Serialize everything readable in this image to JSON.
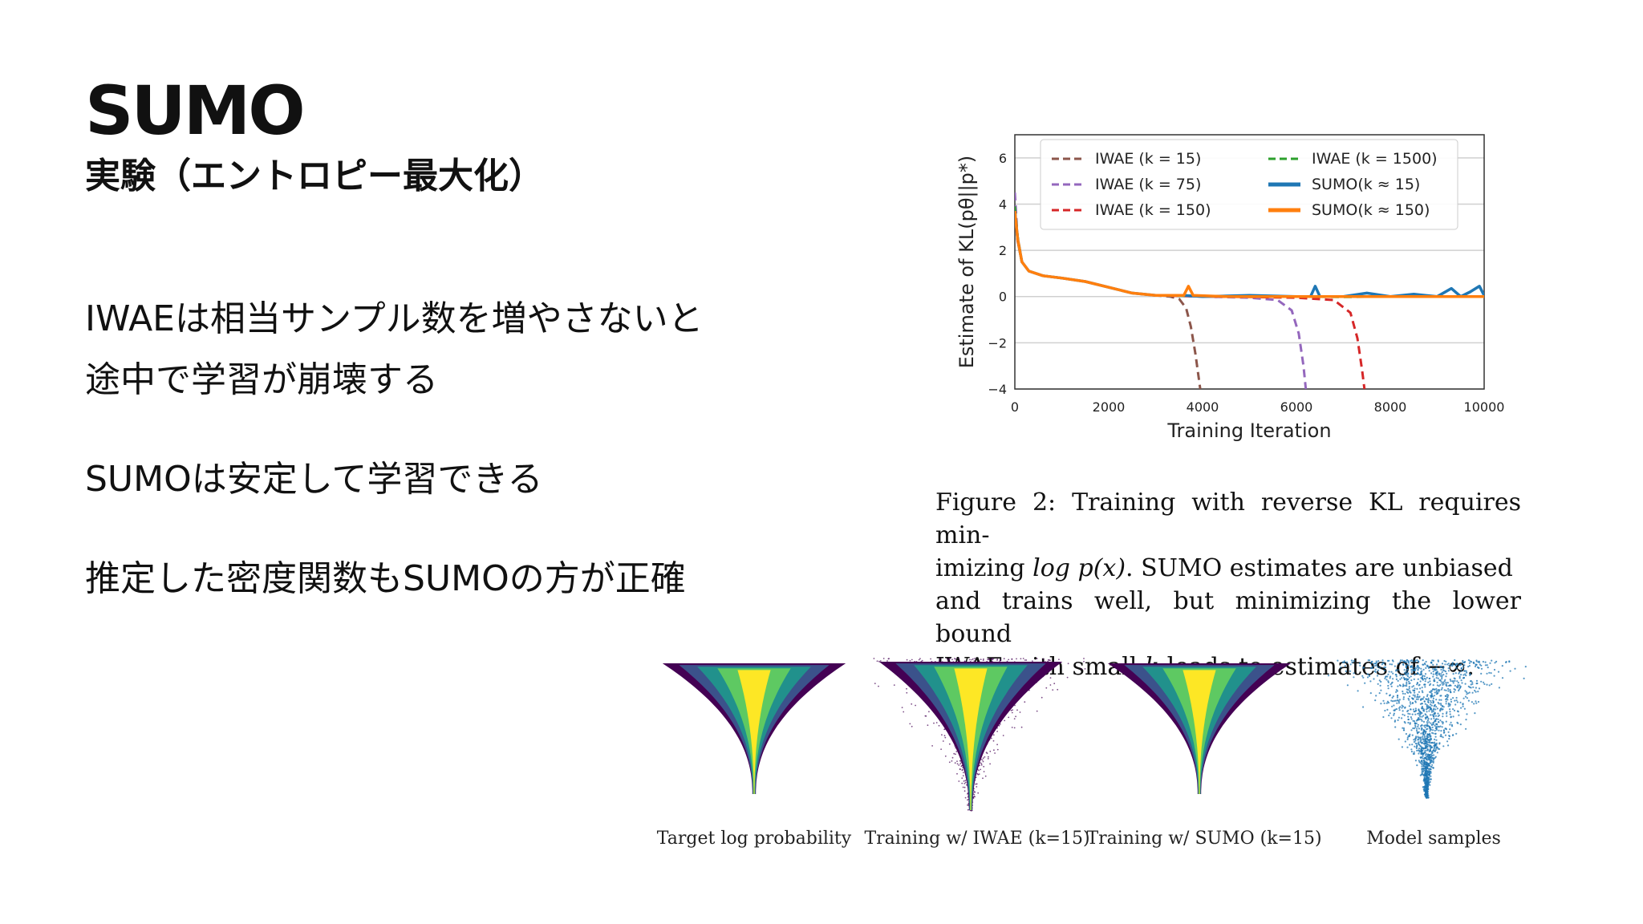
{
  "slide": {
    "title": "SUMO",
    "subtitle": "実験（エントロピー最大化）",
    "bullets": [
      "IWAEは相当サンプル数を増やさないと\n途中で学習が崩壊する",
      "SUMOは安定して学習できる",
      "推定した密度関数もSUMOの方が正確"
    ]
  },
  "caption": {
    "line1": "Figure 2: Training with reverse KL requires min-",
    "line2_pre": "imizing ",
    "line2_math": "log p(x)",
    "line2_post": ". SUMO estimates are unbiased",
    "line3": "and trains well, but minimizing the lower bound",
    "line4_pre": "IWAE with small ",
    "line4_math": "k",
    "line4_post": " leads to estimates of −∞."
  },
  "panels": {
    "labels": [
      "Target log probability",
      "Training w/ IWAE (k=15)",
      "Training w/ SUMO (k=15)",
      "Model samples"
    ],
    "colormap": [
      "#440154",
      "#3b528b",
      "#21918c",
      "#5ec962",
      "#fde725"
    ],
    "sample_color": "#1f77b4"
  },
  "chart_data": {
    "type": "line",
    "xlabel": "Training Iteration",
    "ylabel": "Estimate of KL(pθ||p*)",
    "xlim": [
      0,
      10000
    ],
    "ylim": [
      -4,
      7
    ],
    "xticks": [
      0,
      2000,
      4000,
      6000,
      8000,
      10000
    ],
    "yticks": [
      6,
      4,
      2,
      0,
      -2,
      -4
    ],
    "ytick_labels": [
      "6",
      "4",
      "2",
      "0",
      "−2",
      "−4"
    ],
    "grid": "horizontal",
    "legend_position": "top",
    "series": [
      {
        "name": "IWAE (k = 15)",
        "color": "#8c564b",
        "dash": true,
        "x": [
          0,
          60,
          150,
          300,
          600,
          1000,
          1500,
          2000,
          2500,
          3000,
          3300,
          3500,
          3650,
          3750,
          3850,
          3950
        ],
        "y": [
          3.8,
          2.4,
          1.5,
          1.1,
          0.9,
          0.8,
          0.65,
          0.4,
          0.15,
          0.05,
          0.0,
          -0.1,
          -0.5,
          -1.3,
          -2.5,
          -4.0
        ]
      },
      {
        "name": "IWAE (k = 75)",
        "color": "#9467bd",
        "dash": true,
        "x": [
          0,
          60,
          150,
          300,
          600,
          1000,
          1500,
          2000,
          2500,
          3000,
          4000,
          5000,
          5600,
          5900,
          6050,
          6150,
          6200
        ],
        "y": [
          4.5,
          2.5,
          1.5,
          1.1,
          0.9,
          0.8,
          0.65,
          0.4,
          0.15,
          0.05,
          0.0,
          -0.05,
          -0.15,
          -0.6,
          -1.6,
          -3.0,
          -4.0
        ]
      },
      {
        "name": "IWAE (k = 150)",
        "color": "#d62728",
        "dash": true,
        "x": [
          0,
          60,
          150,
          300,
          600,
          1000,
          1500,
          2000,
          2500,
          3000,
          4000,
          5000,
          6000,
          6800,
          7150,
          7300,
          7400,
          7450
        ],
        "y": [
          3.6,
          2.4,
          1.5,
          1.1,
          0.9,
          0.8,
          0.65,
          0.4,
          0.15,
          0.05,
          0.0,
          -0.02,
          -0.05,
          -0.15,
          -0.7,
          -1.8,
          -3.2,
          -4.0
        ]
      },
      {
        "name": "IWAE (k = 1500)",
        "color": "#2ca02c",
        "dash": true,
        "x": [
          0,
          60,
          150,
          300,
          600,
          1000,
          1500,
          2000,
          2500,
          3000,
          4000,
          5000,
          6000,
          7000,
          8000,
          9000,
          10000
        ],
        "y": [
          3.9,
          2.6,
          1.5,
          1.1,
          0.9,
          0.8,
          0.65,
          0.4,
          0.15,
          0.05,
          0.02,
          0.0,
          0.0,
          -0.02,
          0.0,
          0.0,
          0.0
        ]
      },
      {
        "name": "SUMO(k ≈ 15)",
        "color": "#1f77b4",
        "dash": false,
        "x": [
          0,
          60,
          150,
          300,
          600,
          1000,
          1500,
          2000,
          2500,
          3000,
          3600,
          4000,
          5000,
          6000,
          6300,
          6400,
          6500,
          7000,
          7500,
          8000,
          8500,
          9000,
          9300,
          9500,
          9700,
          9900,
          10000
        ],
        "y": [
          3.7,
          2.5,
          1.5,
          1.1,
          0.9,
          0.8,
          0.65,
          0.4,
          0.15,
          0.05,
          0.05,
          0.0,
          0.05,
          0.0,
          0.0,
          0.45,
          0.0,
          0.0,
          0.15,
          0.0,
          0.1,
          0.0,
          0.35,
          0.0,
          0.2,
          0.45,
          0.05
        ]
      },
      {
        "name": "SUMO(k ≈ 150)",
        "color": "#ff7f0e",
        "dash": false,
        "x": [
          0,
          60,
          150,
          300,
          600,
          1000,
          1500,
          2000,
          2500,
          3000,
          3600,
          3700,
          3800,
          4500,
          5000,
          6000,
          7000,
          8000,
          9000,
          10000
        ],
        "y": [
          3.7,
          2.5,
          1.5,
          1.1,
          0.9,
          0.8,
          0.65,
          0.4,
          0.15,
          0.05,
          0.05,
          0.45,
          0.05,
          0.0,
          0.0,
          0.0,
          0.0,
          0.0,
          0.0,
          0.0
        ]
      }
    ]
  }
}
